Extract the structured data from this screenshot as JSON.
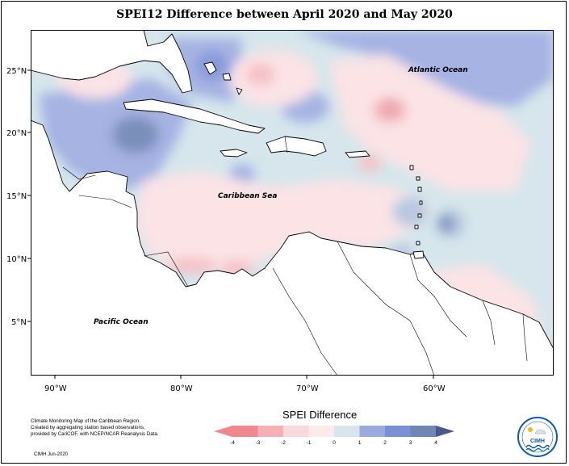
{
  "title": "SPEI12 Difference between April 2020 and May 2020",
  "ocean_labels": {
    "atlantic": "Atlantic Ocean",
    "caribbean": "Caribbean Sea",
    "pacific": "Pacific Ocean"
  },
  "axes": {
    "lat_ticks": [
      "25°N",
      "20°N",
      "15°N",
      "10°N",
      "5°N"
    ],
    "lon_ticks": [
      "90°W",
      "80°W",
      "70°W",
      "60°W"
    ]
  },
  "legend": {
    "title": "SPEI Difference",
    "ticks": [
      "-4",
      "-3",
      "-2",
      "-1",
      "0",
      "1",
      "2",
      "3",
      "4"
    ],
    "colors": [
      "#f2868f",
      "#f4b0b5",
      "#f9d9dc",
      "#fdebec",
      "#d6e6ec",
      "#9aaade",
      "#7b8fd6",
      "#6f86b2",
      "#4a5890"
    ]
  },
  "credits": {
    "lines": [
      "Climate Monitoring Map of the Caribbean Region.",
      "Created by aggregating station based observations,",
      "provided by CariCOF, with NCEP/NCAR Reanalysis Data."
    ],
    "date": "CIMH Jun-2020"
  },
  "logo": {
    "name": "CIMH"
  }
}
